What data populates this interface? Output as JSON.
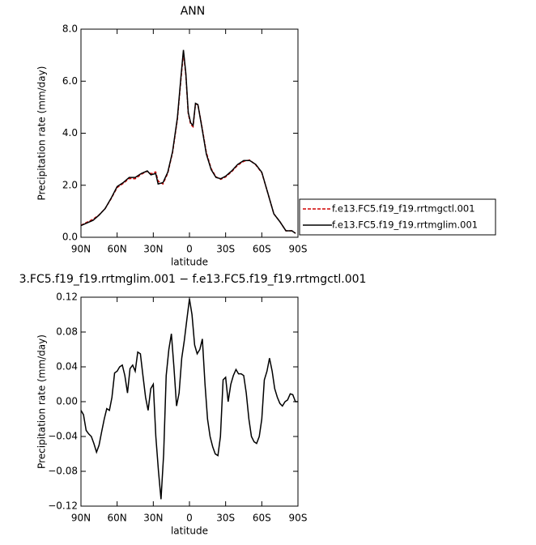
{
  "chart_data": [
    {
      "type": "line",
      "title": "ANN",
      "xlabel": "latitude",
      "ylabel": "Precipitation rate (mm/day)",
      "xlim": [
        90,
        -90
      ],
      "xticks": [
        {
          "value": 90,
          "label": "90N"
        },
        {
          "value": 60,
          "label": "60N"
        },
        {
          "value": 30,
          "label": "30N"
        },
        0,
        {
          "value": -30,
          "label": "30S"
        },
        {
          "value": -60,
          "label": "60S"
        },
        {
          "value": -90,
          "label": "90S"
        }
      ],
      "ylim": [
        0,
        8
      ],
      "yticks": [
        {
          "value": 0,
          "label": "0.0"
        },
        {
          "value": 2,
          "label": "2.0"
        },
        {
          "value": 4,
          "label": "4.0"
        },
        {
          "value": 6,
          "label": "6.0"
        },
        {
          "value": 8,
          "label": "8.0"
        }
      ],
      "legend": "right",
      "x": [
        90,
        85,
        80,
        75,
        70,
        65,
        60,
        55,
        50,
        45,
        40,
        35,
        32,
        28,
        26,
        22,
        18,
        14,
        10,
        7,
        5,
        3,
        1,
        -1,
        -3,
        -5,
        -7,
        -10,
        -14,
        -18,
        -22,
        -26,
        -30,
        -35,
        -40,
        -45,
        -50,
        -55,
        -60,
        -65,
        -70,
        -75,
        -80,
        -85,
        -88
      ],
      "series": [
        {
          "name": "f.e13.FC5.f19_f19.rrtmgctl.001",
          "color": "#d00000",
          "dash": true,
          "values": [
            0.46,
            0.58,
            0.69,
            0.86,
            1.1,
            1.48,
            1.91,
            2.07,
            2.26,
            2.25,
            2.42,
            2.54,
            2.44,
            2.51,
            2.16,
            2.05,
            2.46,
            3.26,
            4.53,
            6.1,
            7.1,
            6.23,
            4.75,
            4.34,
            4.25,
            5.12,
            5.1,
            4.35,
            3.26,
            2.64,
            2.32,
            2.23,
            2.32,
            2.52,
            2.77,
            2.92,
            2.97,
            2.78,
            2.48,
            1.7,
            0.9,
            0.6,
            0.25,
            0.25,
            0.15
          ]
        },
        {
          "name": "f.e13.FC5.f19_f19.rrtmglim.001",
          "color": "#000000",
          "dash": false,
          "values": [
            0.45,
            0.55,
            0.65,
            0.85,
            1.1,
            1.5,
            1.95,
            2.1,
            2.3,
            2.3,
            2.45,
            2.55,
            2.4,
            2.45,
            2.05,
            2.1,
            2.5,
            3.3,
            4.6,
            6.2,
            7.2,
            6.3,
            4.8,
            4.4,
            4.3,
            5.15,
            5.1,
            4.3,
            3.2,
            2.6,
            2.3,
            2.25,
            2.35,
            2.55,
            2.8,
            2.95,
            2.95,
            2.8,
            2.5,
            1.7,
            0.9,
            0.6,
            0.25,
            0.25,
            0.15
          ]
        }
      ]
    },
    {
      "type": "line",
      "title": "3.FC5.f19_f19.rrtmglim.001 − f.e13.FC5.f19_f19.rrtmgctl.001",
      "xlabel": "latitude",
      "ylabel": "Precipitation rate (mm/day)",
      "xlim": [
        90,
        -90
      ],
      "xticks": [
        {
          "value": 90,
          "label": "90N"
        },
        {
          "value": 60,
          "label": "60N"
        },
        {
          "value": 30,
          "label": "30N"
        },
        0,
        {
          "value": -30,
          "label": "30S"
        },
        {
          "value": -60,
          "label": "60S"
        },
        {
          "value": -90,
          "label": "90S"
        }
      ],
      "ylim": [
        -0.12,
        0.12
      ],
      "yticks": [
        {
          "value": -0.12,
          "label": "−0.12"
        },
        {
          "value": -0.08,
          "label": "−0.08"
        },
        {
          "value": -0.04,
          "label": "−0.04"
        },
        {
          "value": 0,
          "label": "0.00"
        },
        0.04,
        0.08,
        0.12
      ],
      "x": [
        90.0,
        87.9,
        85.7,
        83.6,
        81.4,
        79.3,
        77.1,
        75.0,
        72.9,
        70.7,
        68.6,
        66.4,
        64.3,
        62.1,
        60.0,
        57.9,
        55.7,
        53.6,
        51.4,
        49.3,
        47.1,
        45.0,
        42.9,
        40.7,
        38.6,
        36.4,
        34.3,
        32.1,
        30.0,
        27.9,
        25.7,
        23.6,
        21.4,
        19.3,
        17.1,
        15.0,
        12.9,
        10.7,
        8.6,
        6.4,
        4.3,
        2.1,
        0.0,
        -2.1,
        -4.3,
        -6.4,
        -8.6,
        -10.7,
        -12.9,
        -15.0,
        -17.1,
        -19.3,
        -21.4,
        -23.6,
        -25.7,
        -27.9,
        -30.0,
        -32.1,
        -34.3,
        -36.4,
        -38.6,
        -40.7,
        -42.9,
        -45.0,
        -47.1,
        -49.3,
        -51.4,
        -53.6,
        -55.7,
        -57.9,
        -60.0,
        -62.1,
        -64.3,
        -66.4,
        -68.6,
        -70.7,
        -72.9,
        -75.0,
        -77.1,
        -79.3,
        -81.4,
        -83.6,
        -85.7,
        -87.9,
        -90.0
      ],
      "series": [
        {
          "color": "#000000",
          "dash": false,
          "values": [
            -0.01,
            -0.015,
            -0.033,
            -0.037,
            -0.04,
            -0.048,
            -0.058,
            -0.05,
            -0.035,
            -0.02,
            -0.008,
            -0.01,
            0.005,
            0.033,
            0.035,
            0.04,
            0.042,
            0.03,
            0.01,
            0.038,
            0.042,
            0.035,
            0.057,
            0.055,
            0.03,
            0.005,
            -0.01,
            0.015,
            0.02,
            -0.04,
            -0.08,
            -0.112,
            -0.06,
            0.03,
            0.06,
            0.078,
            0.04,
            -0.005,
            0.01,
            0.05,
            0.07,
            0.095,
            0.118,
            0.1,
            0.065,
            0.055,
            0.06,
            0.072,
            0.02,
            -0.02,
            -0.04,
            -0.052,
            -0.06,
            -0.062,
            -0.04,
            0.025,
            0.028,
            0.0,
            0.02,
            0.03,
            0.037,
            0.032,
            0.032,
            0.03,
            0.01,
            -0.02,
            -0.04,
            -0.046,
            -0.048,
            -0.04,
            -0.02,
            0.025,
            0.035,
            0.05,
            0.035,
            0.015,
            0.005,
            -0.002,
            -0.005,
            0.0,
            0.002,
            0.009,
            0.008,
            0.0,
            0.0
          ]
        }
      ]
    }
  ]
}
